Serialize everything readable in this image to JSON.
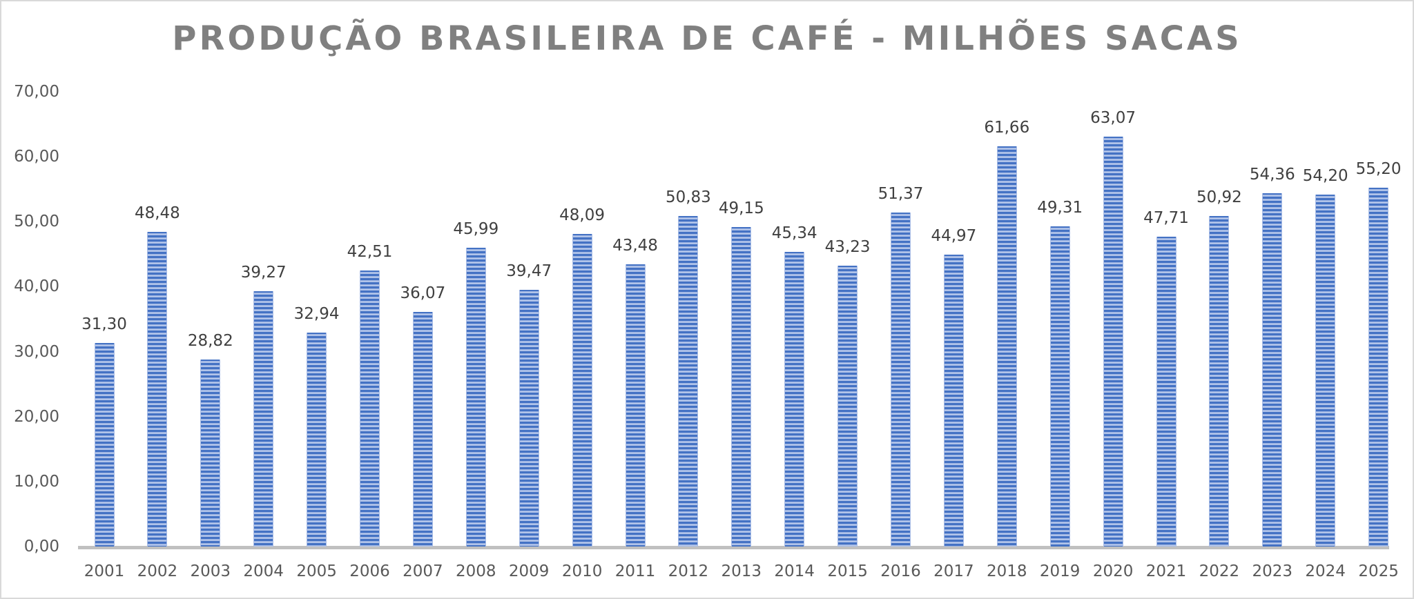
{
  "chart_data": {
    "type": "bar",
    "title": "PRODUÇÃO BRASILEIRA DE CAFÉ - MILHÕES SACAS",
    "xlabel": "",
    "ylabel": "",
    "categories": [
      "2001",
      "2002",
      "2003",
      "2004",
      "2005",
      "2006",
      "2007",
      "2008",
      "2009",
      "2010",
      "2011",
      "2012",
      "2013",
      "2014",
      "2015",
      "2016",
      "2017",
      "2018",
      "2019",
      "2020",
      "2021",
      "2022",
      "2023",
      "2024",
      "2025"
    ],
    "values": [
      31.3,
      48.48,
      28.82,
      39.27,
      32.94,
      42.51,
      36.07,
      45.99,
      39.47,
      48.09,
      43.48,
      50.83,
      49.15,
      45.34,
      43.23,
      51.37,
      44.97,
      61.66,
      49.31,
      63.07,
      47.71,
      50.92,
      54.36,
      54.2,
      55.2
    ],
    "value_labels": [
      "31,30",
      "48,48",
      "28,82",
      "39,27",
      "32,94",
      "42,51",
      "36,07",
      "45,99",
      "39,47",
      "48,09",
      "43,48",
      "50,83",
      "49,15",
      "45,34",
      "43,23",
      "51,37",
      "44,97",
      "61,66",
      "49,31",
      "63,07",
      "47,71",
      "50,92",
      "54,36",
      "54,20",
      "55,20"
    ],
    "ylim": [
      0,
      70
    ],
    "yticks": [
      0,
      10,
      20,
      30,
      40,
      50,
      60,
      70
    ],
    "ytick_labels": [
      "0,00",
      "10,00",
      "20,00",
      "30,00",
      "40,00",
      "50,00",
      "60,00",
      "70,00"
    ],
    "grid": false,
    "legend": null,
    "bar_color": "#4472c4",
    "bar_pattern": "horizontal-stripes"
  },
  "colors": {
    "title": "#808080",
    "axis_text": "#595959",
    "data_label": "#404040",
    "axis_line": "#c0c0c0",
    "border": "#d9d9d9"
  }
}
